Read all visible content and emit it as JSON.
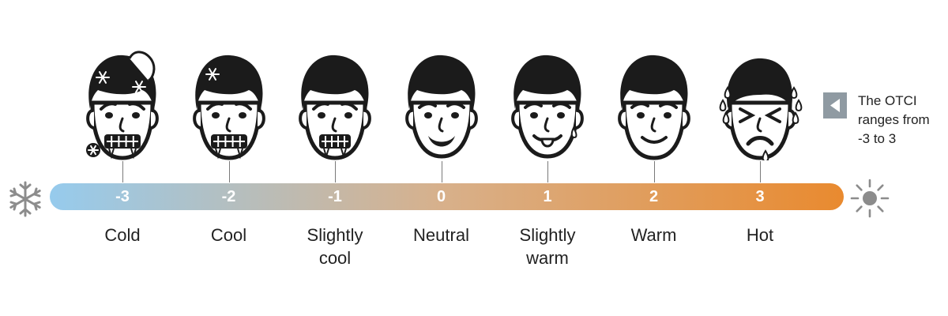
{
  "colors": {
    "bar_cold": "#96cbed",
    "bar_mid": "#d8b08a",
    "bar_hot": "#e98a2f",
    "ink": "#1b1b1b",
    "tick": "#7a7a7a",
    "icon_gray": "#8c8c8c",
    "note_box": "#8f9aa2"
  },
  "scale": [
    {
      "value": "-3",
      "label": [
        "Cold"
      ],
      "face": "cold"
    },
    {
      "value": "-2",
      "label": [
        "Cool"
      ],
      "face": "cool"
    },
    {
      "value": "-1",
      "label": [
        "Slightly",
        "cool"
      ],
      "face": "slightly-cool"
    },
    {
      "value": "0",
      "label": [
        "Neutral"
      ],
      "face": "neutral"
    },
    {
      "value": "1",
      "label": [
        "Slightly",
        "warm"
      ],
      "face": "slightly-warm"
    },
    {
      "value": "2",
      "label": [
        "Warm"
      ],
      "face": "warm"
    },
    {
      "value": "3",
      "label": [
        "Hot"
      ],
      "face": "hot"
    }
  ],
  "left_icon": "snowflake-icon",
  "right_icon": "sun-icon",
  "note": {
    "icon": "triangle-left-icon",
    "lines": [
      "The OTCI",
      "ranges from",
      "-3 to 3"
    ]
  }
}
